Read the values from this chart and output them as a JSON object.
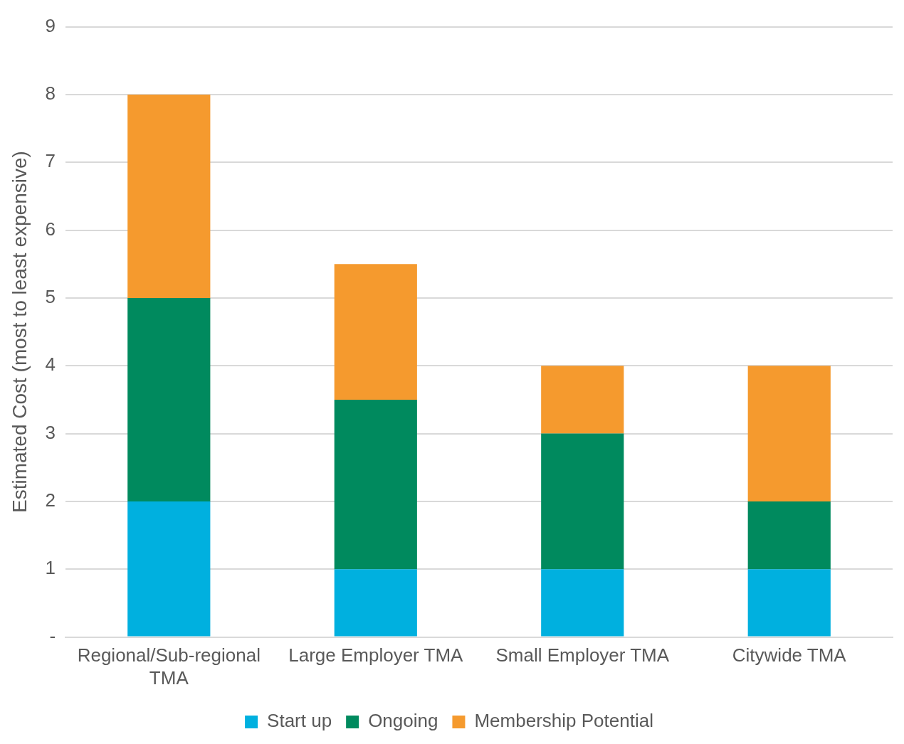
{
  "chart_data": {
    "type": "bar",
    "stacked": true,
    "ylabel": "Estimated Cost (most to least expensive)",
    "categories": [
      "Regional/Sub-regional TMA",
      "Large Employer TMA",
      "Small Employer TMA",
      "Citywide TMA"
    ],
    "series": [
      {
        "name": "Start up",
        "color": "#00b0df",
        "values": [
          2,
          1,
          1,
          1
        ]
      },
      {
        "name": "Ongoing",
        "color": "#008a5e",
        "values": [
          3,
          2.5,
          2,
          1
        ]
      },
      {
        "name": "Membership Potential",
        "color": "#f59a2e",
        "values": [
          3,
          2,
          1,
          2
        ]
      }
    ],
    "ylim": [
      0,
      9
    ],
    "yticks": [
      {
        "value": 0,
        "label": "-"
      },
      1,
      2,
      3,
      4,
      5,
      6,
      7,
      8,
      9
    ],
    "grid": "y",
    "legend": "bottom"
  }
}
